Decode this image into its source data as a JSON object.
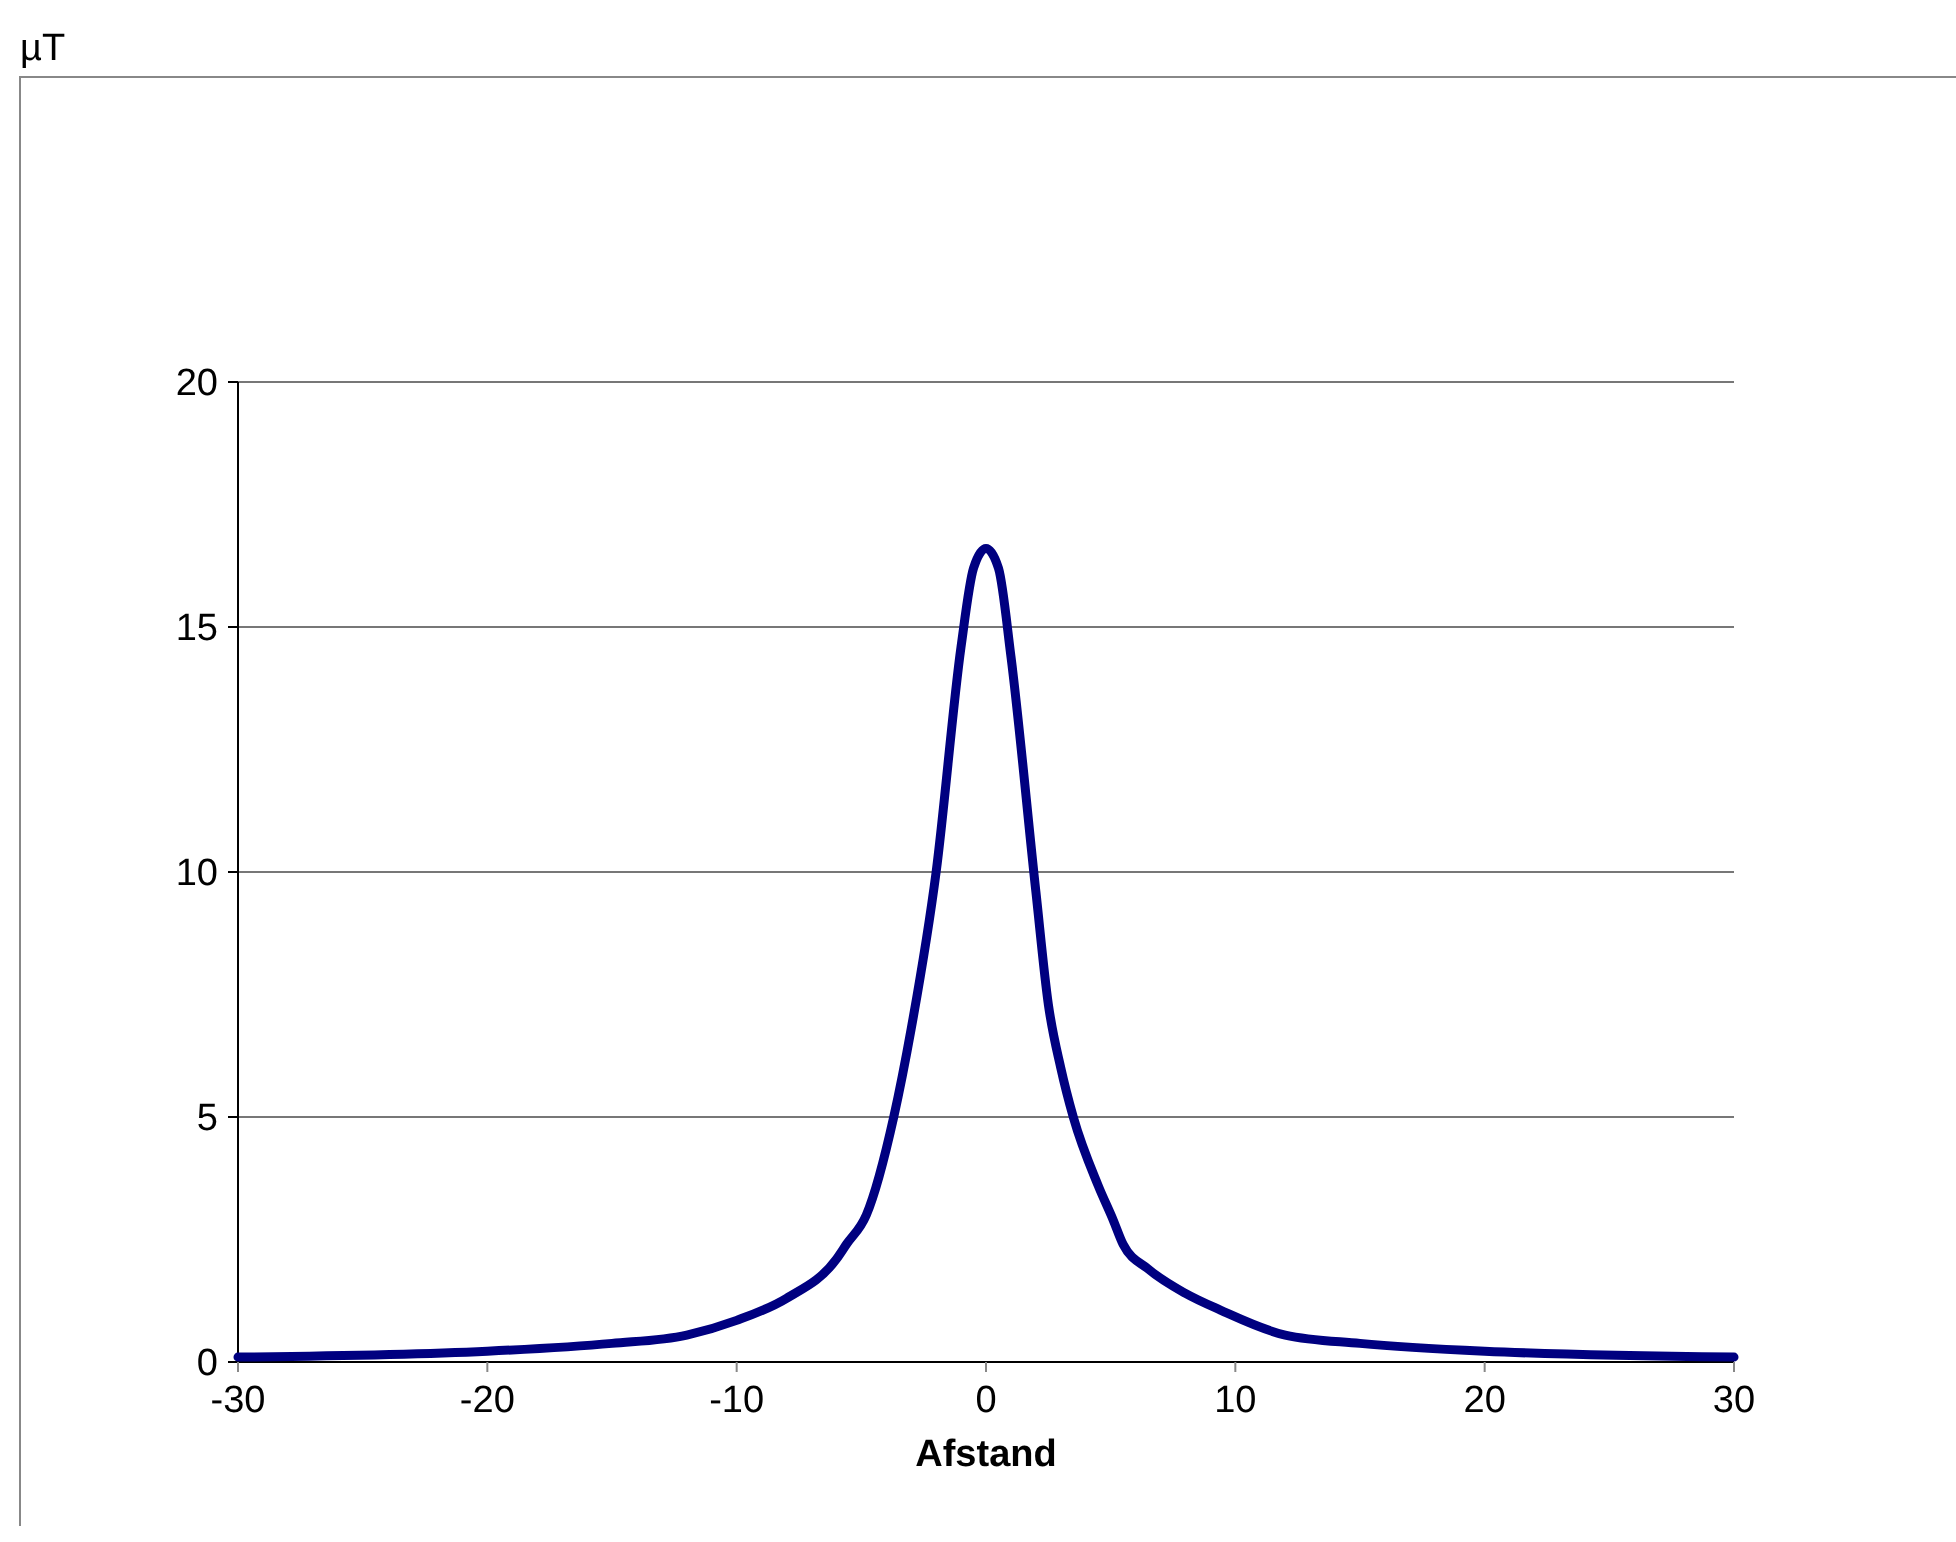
{
  "chart_data": {
    "type": "line",
    "annotations": [
      "µT"
    ],
    "xlabel": "Afstand",
    "x": [
      -30,
      -20,
      -15,
      -12,
      -10,
      -8,
      -6,
      -5.6,
      -4.8,
      -3.7,
      -3,
      -2,
      -1,
      -0.5,
      0,
      0.5,
      1,
      2,
      2.5,
      3,
      3.5,
      4.5,
      5.1,
      5.5,
      6.5,
      8,
      9.4,
      12,
      15,
      20,
      30
    ],
    "series": [
      {
        "color": "#000080",
        "values": [
          0.1,
          0.22,
          0.38,
          0.55,
          0.85,
          1.3,
          2.1,
          2.4,
          3.0,
          5,
          6.8,
          10,
          14.6,
          16.2,
          16.6,
          16.2,
          14.4,
          9.6,
          7.3,
          6.0,
          5,
          3.6,
          2.9,
          2.4,
          1.9,
          1.4,
          1.06,
          0.55,
          0.38,
          0.22,
          0.1
        ]
      }
    ],
    "xlim": [
      -30,
      30
    ],
    "xticks": [
      -30,
      -20,
      -10,
      0,
      10,
      20,
      30
    ],
    "ylim": [
      0,
      20
    ],
    "yticks": [
      0,
      5,
      10,
      15,
      20
    ],
    "grid": "y",
    "marker": "none",
    "line_style": "solid"
  }
}
